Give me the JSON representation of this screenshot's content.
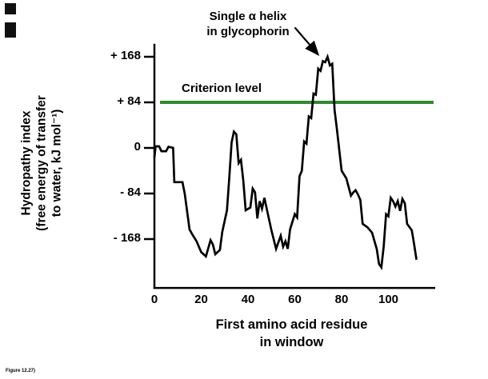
{
  "figure_caption": "Figure 12.27)",
  "chart_data": {
    "type": "line",
    "title": "",
    "xlabel_lines": [
      "First amino acid residue",
      "in window"
    ],
    "ylabel_lines": [
      "Hydropathy index",
      "(free energy of transfer",
      "to water, kJ mol⁻¹)"
    ],
    "x_ticks": [
      0,
      20,
      40,
      60,
      80,
      100
    ],
    "y_ticks": [
      168,
      84,
      0,
      -84,
      -168
    ],
    "y_tick_labels": [
      "+ 168",
      "+ 84",
      "0",
      "- 84",
      "- 168"
    ],
    "xlim": [
      0,
      120
    ],
    "ylim": [
      -258,
      192
    ],
    "grid": false,
    "legend": "none",
    "criterion": {
      "label": "Criterion level",
      "value": 84,
      "color": "#2e8b2e",
      "span_x": [
        2.4,
        119.3
      ]
    },
    "annotation": {
      "line1": "Single α helix",
      "line2": "in glycophorin",
      "arrow_from": [
        60,
        222
      ],
      "arrow_to": [
        70,
        172
      ]
    },
    "series": [
      {
        "name": "Hydropathy of glycophorin",
        "color": "#000000",
        "points": [
          [
            0,
            -18
          ],
          [
            0.5,
            3
          ],
          [
            2,
            3
          ],
          [
            3,
            -6
          ],
          [
            5,
            -6
          ],
          [
            6,
            2
          ],
          [
            8,
            0
          ],
          [
            8.5,
            -63
          ],
          [
            12,
            -63
          ],
          [
            13,
            -85
          ],
          [
            15,
            -150
          ],
          [
            16,
            -158
          ],
          [
            18,
            -172
          ],
          [
            20,
            -192
          ],
          [
            22,
            -200
          ],
          [
            24,
            -170
          ],
          [
            25,
            -178
          ],
          [
            26,
            -196
          ],
          [
            28,
            -188
          ],
          [
            29,
            -155
          ],
          [
            31,
            -115
          ],
          [
            32,
            -55
          ],
          [
            33,
            10
          ],
          [
            34,
            30
          ],
          [
            35,
            25
          ],
          [
            36,
            -28
          ],
          [
            37,
            -22
          ],
          [
            38,
            -60
          ],
          [
            39,
            -115
          ],
          [
            41,
            -110
          ],
          [
            42,
            -75
          ],
          [
            43,
            -82
          ],
          [
            44,
            -130
          ],
          [
            45,
            -98
          ],
          [
            46,
            -112
          ],
          [
            47,
            -92
          ],
          [
            48,
            -112
          ],
          [
            50,
            -152
          ],
          [
            52,
            -186
          ],
          [
            54,
            -162
          ],
          [
            55,
            -182
          ],
          [
            56,
            -172
          ],
          [
            57,
            -186
          ],
          [
            58,
            -150
          ],
          [
            60,
            -122
          ],
          [
            61,
            -128
          ],
          [
            62,
            -52
          ],
          [
            63,
            -42
          ],
          [
            64,
            12
          ],
          [
            65,
            8
          ],
          [
            66,
            58
          ],
          [
            67,
            55
          ],
          [
            68,
            100
          ],
          [
            69,
            98
          ],
          [
            70,
            146
          ],
          [
            71,
            142
          ],
          [
            72,
            160
          ],
          [
            73,
            158
          ],
          [
            74,
            168
          ],
          [
            75,
            152
          ],
          [
            76,
            155
          ],
          [
            77,
            70
          ],
          [
            78,
            35
          ],
          [
            80,
            -42
          ],
          [
            82,
            -56
          ],
          [
            84,
            -88
          ],
          [
            85,
            -82
          ],
          [
            86,
            -78
          ],
          [
            87,
            -86
          ],
          [
            88,
            -96
          ],
          [
            89,
            -140
          ],
          [
            91,
            -146
          ],
          [
            93,
            -156
          ],
          [
            95,
            -186
          ],
          [
            96,
            -214
          ],
          [
            97,
            -220
          ],
          [
            98,
            -182
          ],
          [
            99,
            -122
          ],
          [
            100,
            -126
          ],
          [
            101,
            -92
          ],
          [
            102,
            -98
          ],
          [
            103,
            -108
          ],
          [
            104,
            -98
          ],
          [
            105,
            -116
          ],
          [
            106,
            -94
          ],
          [
            107,
            -102
          ],
          [
            108,
            -140
          ],
          [
            110,
            -152
          ],
          [
            111,
            -178
          ],
          [
            112,
            -206
          ]
        ]
      }
    ]
  }
}
